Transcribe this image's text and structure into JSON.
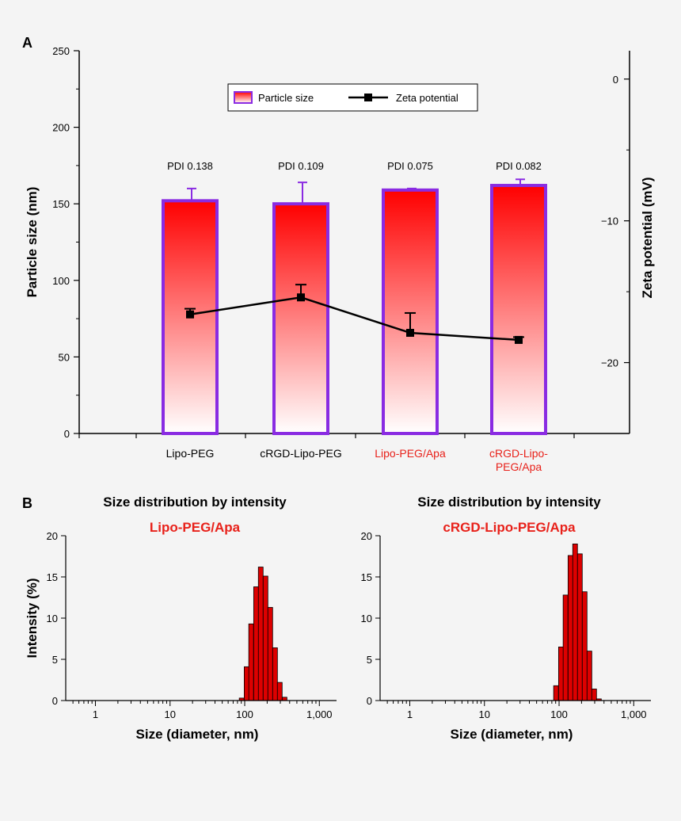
{
  "colors": {
    "bar_gradient_top": "#ff0000",
    "bar_gradient_bottom": "#ffffff",
    "bar_outline": "#8a2be2",
    "zeta_line": "#000000",
    "highlight_text": "#e8211a",
    "hist_fill": "#dd0000"
  },
  "chart_data": [
    {
      "panel": "A",
      "type": "bar",
      "categories": [
        "Lipo-PEG",
        "cRGD-Lipo-PEG",
        "Lipo-PEG/Apa",
        "cRGD-Lipo-PEG/Apa"
      ],
      "category_labels": [
        {
          "lines": [
            "Lipo-PEG"
          ],
          "highlight": false
        },
        {
          "lines": [
            "cRGD-Lipo-PEG"
          ],
          "highlight": false
        },
        {
          "lines": [
            "Lipo-PEG/Apa"
          ],
          "highlight": true
        },
        {
          "lines": [
            "cRGD-Lipo-",
            "PEG/Apa"
          ],
          "highlight": true
        }
      ],
      "series": [
        {
          "name": "Particle size",
          "axis": "left",
          "kind": "bar",
          "values": [
            152,
            150,
            159,
            162
          ],
          "errors": [
            8,
            14,
            1,
            4
          ]
        },
        {
          "name": "Zeta potential",
          "axis": "right",
          "kind": "line",
          "values": [
            -16.6,
            -15.4,
            -17.9,
            -18.4
          ],
          "errors": [
            0.4,
            0.9,
            1.4,
            0.2
          ]
        }
      ],
      "annotations": [
        "PDI 0.138",
        "PDI 0.109",
        "PDI 0.075",
        "PDI 0.082"
      ],
      "ylabel": "Particle size (nm)",
      "y2label": "Zeta potential (mV)",
      "ylim": [
        0,
        250
      ],
      "y2lim": [
        -25,
        2
      ],
      "yticks": [
        "0",
        "50",
        "100",
        "150",
        "200",
        "250"
      ],
      "y2ticks": [
        "0",
        "−10",
        "−20"
      ],
      "legend_position": "top-center",
      "grid": false
    },
    {
      "panel": "B",
      "type": "bar",
      "title": "Size distribution by intensity",
      "subtitle": "Lipo-PEG/Apa",
      "xlabel": "Size (diameter, nm)",
      "ylabel": "Intensity (%)",
      "x_scale": "log",
      "xlim": [
        0.4,
        1700
      ],
      "ylim": [
        0,
        20
      ],
      "xticks": [
        "1",
        "10",
        "100",
        "1,000"
      ],
      "yticks": [
        "0",
        "5",
        "10",
        "15",
        "20"
      ],
      "bins": [
        {
          "x": 91,
          "y": 0.3
        },
        {
          "x": 106,
          "y": 4.1
        },
        {
          "x": 122,
          "y": 9.3
        },
        {
          "x": 142,
          "y": 13.8
        },
        {
          "x": 164,
          "y": 16.2
        },
        {
          "x": 190,
          "y": 15.1
        },
        {
          "x": 220,
          "y": 11.3
        },
        {
          "x": 255,
          "y": 6.4
        },
        {
          "x": 295,
          "y": 2.2
        },
        {
          "x": 342,
          "y": 0.4
        }
      ]
    },
    {
      "panel": "B",
      "type": "bar",
      "title": "Size distribution by intensity",
      "subtitle": "cRGD-Lipo-PEG/Apa",
      "xlabel": "Size (diameter, nm)",
      "ylabel": "",
      "x_scale": "log",
      "xlim": [
        0.4,
        1700
      ],
      "ylim": [
        0,
        20
      ],
      "xticks": [
        "1",
        "10",
        "100",
        "1,000"
      ],
      "yticks": [
        "0",
        "5",
        "10",
        "15",
        "20"
      ],
      "bins": [
        {
          "x": 91,
          "y": 1.8
        },
        {
          "x": 106,
          "y": 6.5
        },
        {
          "x": 122,
          "y": 12.8
        },
        {
          "x": 142,
          "y": 17.6
        },
        {
          "x": 164,
          "y": 19.0
        },
        {
          "x": 190,
          "y": 17.8
        },
        {
          "x": 220,
          "y": 13.2
        },
        {
          "x": 255,
          "y": 6.0
        },
        {
          "x": 295,
          "y": 1.4
        },
        {
          "x": 342,
          "y": 0.2
        }
      ]
    }
  ],
  "panel_labels": [
    "A",
    "B"
  ]
}
